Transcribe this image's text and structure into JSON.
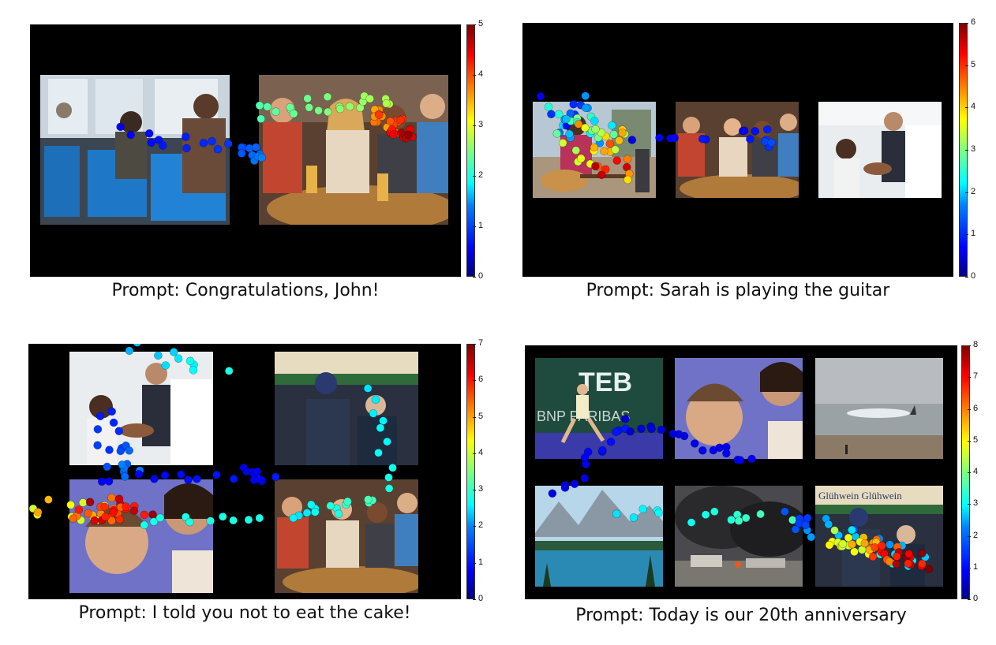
{
  "panels": [
    {
      "caption": "Prompt: Congratulations, John!",
      "colorbar_max": 5,
      "ticks": [
        "0",
        "1",
        "2",
        "3",
        "4",
        "5"
      ],
      "images": [
        "bus-passengers-photo",
        "friends-at-bar-photo"
      ]
    },
    {
      "caption": "Prompt: Sarah is playing the guitar",
      "colorbar_max": 6,
      "ticks": [
        "0",
        "1",
        "2",
        "3",
        "4",
        "5",
        "6"
      ],
      "images": [
        "woman-with-guitar-photo",
        "friends-at-bar-photo",
        "birthday-cake-photo"
      ]
    },
    {
      "caption": "Prompt: I told you not to eat the cake!",
      "colorbar_max": 7,
      "ticks": [
        "0",
        "1",
        "2",
        "3",
        "4",
        "5",
        "6",
        "7"
      ],
      "images": [
        "birthday-cake-photo",
        "christmas-market-photo",
        "scolding-boy-photo",
        "friends-at-bar-photo"
      ]
    },
    {
      "caption": "Prompt: Today is our 20th anniversary",
      "colorbar_max": 8,
      "ticks": [
        "0",
        "1",
        "2",
        "3",
        "4",
        "5",
        "6",
        "7",
        "8"
      ],
      "images": [
        "tennis-player-photo",
        "scolding-boy-photo",
        "beach-runner-photo",
        "mountain-lake-photo",
        "smoke-fire-photo",
        "christmas-market-photo"
      ],
      "photo_text": {
        "tennis_banner": "TEB",
        "tennis_sponsor": "BNP PARIBAS",
        "market_sign": "Glühwein Glühwein"
      }
    }
  ],
  "colormap": "jet"
}
